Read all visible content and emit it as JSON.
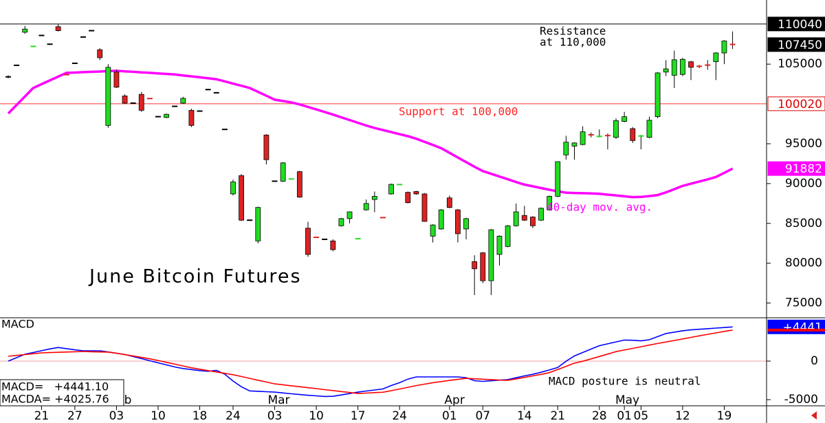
{
  "chart_data": [
    {
      "type": "candlestick",
      "title": "June Bitcoin Futures",
      "categories": [
        null,
        null,
        null,
        null,
        "21",
        null,
        null,
        null,
        "27",
        null,
        null,
        null,
        null,
        "03",
        null,
        null,
        null,
        null,
        "10",
        null,
        null,
        null,
        null,
        "18",
        null,
        null,
        null,
        "24",
        null,
        null,
        null,
        null,
        "03",
        null,
        null,
        null,
        null,
        "10",
        null,
        null,
        null,
        null,
        "17",
        null,
        null,
        null,
        null,
        "24",
        null,
        null,
        null,
        null,
        null,
        "01",
        null,
        null,
        null,
        "07",
        null,
        null,
        null,
        null,
        "14",
        null,
        null,
        null,
        "21",
        null,
        null,
        null,
        null,
        "28",
        null,
        null,
        "01",
        null,
        "05",
        null,
        null,
        null,
        null,
        "12",
        null,
        null,
        null,
        null,
        "19",
        null
      ],
      "months": [
        null,
        null,
        null,
        null,
        null,
        null,
        null,
        null,
        null,
        null,
        null,
        null,
        null,
        "b",
        null,
        null,
        null,
        null,
        null,
        null,
        null,
        null,
        null,
        null,
        null,
        null,
        null,
        null,
        null,
        null,
        null,
        null,
        "Mar",
        null,
        null,
        null,
        null,
        null,
        null,
        null,
        null,
        null,
        null,
        null,
        null,
        null,
        null,
        null,
        null,
        null,
        null,
        null,
        null,
        "Apr",
        null,
        null,
        null,
        null,
        null,
        null,
        null,
        null,
        null,
        null,
        null,
        null,
        null,
        null,
        null,
        null,
        null,
        null,
        null,
        null,
        "May",
        null,
        null,
        null,
        null,
        null,
        null,
        null,
        null,
        null,
        null,
        null,
        null,
        null
      ],
      "open": [
        103400,
        104850,
        109000,
        107200,
        108600,
        107500,
        109700,
        103700,
        105100,
        108400,
        109200,
        106800,
        97300,
        104000,
        101000,
        100100,
        101200,
        100700,
        98400,
        98300,
        99700,
        100100,
        99200,
        99100,
        101800,
        101400,
        96800,
        88700,
        91000,
        85400,
        82800,
        96100,
        90300,
        90300,
        90550,
        91500,
        84400,
        83300,
        83000,
        82800,
        84700,
        85600,
        83050,
        86700,
        88000,
        85750,
        88700,
        89850,
        88900,
        89000,
        88700,
        83400,
        84300,
        88200,
        86700,
        84300,
        80200,
        81300,
        77800,
        81100,
        82100,
        84700,
        86000,
        85800,
        85400,
        86700,
        88400,
        93600,
        94700,
        94900,
        96150,
        95900,
        96050,
        95800,
        97800,
        96900,
        95950,
        95800,
        98400,
        104000,
        103600,
        103700,
        105300,
        104750,
        104900,
        105300,
        106400,
        107500
      ],
      "high": [
        103600,
        104850,
        109800,
        107200,
        108600,
        107500,
        110000,
        103700,
        105100,
        108400,
        109200,
        107000,
        105000,
        104300,
        101200,
        100100,
        101500,
        100700,
        98400,
        98800,
        99700,
        100900,
        99400,
        99100,
        101800,
        101400,
        96800,
        90500,
        91200,
        85400,
        87100,
        96200,
        90300,
        92700,
        90600,
        91600,
        85200,
        83300,
        83000,
        83000,
        85700,
        86500,
        83100,
        88000,
        89000,
        85750,
        90000,
        89900,
        89000,
        89100,
        88800,
        84900,
        86800,
        88500,
        86800,
        85700,
        81000,
        81400,
        84300,
        83500,
        84800,
        87500,
        87200,
        85900,
        87000,
        88500,
        92800,
        96000,
        95200,
        97200,
        96400,
        96800,
        96300,
        98200,
        99000,
        97100,
        96100,
        98400,
        104000,
        105500,
        106700,
        105800,
        105400,
        104900,
        105500,
        106500,
        108000,
        109100
      ],
      "low": [
        103200,
        104850,
        108800,
        107200,
        108600,
        107500,
        109100,
        103650,
        105100,
        108400,
        109200,
        105500,
        97000,
        102000,
        100000,
        100100,
        99000,
        100650,
        98400,
        98200,
        99700,
        100000,
        97100,
        99100,
        101800,
        101400,
        96800,
        88500,
        85300,
        85400,
        82500,
        92400,
        90300,
        90200,
        90550,
        88200,
        80800,
        83200,
        83000,
        81500,
        84600,
        85000,
        83050,
        86600,
        86400,
        85700,
        88600,
        89850,
        87500,
        88600,
        85200,
        82600,
        84200,
        86900,
        82600,
        83000,
        76000,
        77500,
        76000,
        79700,
        82000,
        84600,
        85300,
        84400,
        85300,
        86600,
        88300,
        93000,
        93000,
        94800,
        95800,
        95800,
        94300,
        95600,
        97700,
        95100,
        94300,
        95700,
        98200,
        103500,
        102000,
        103500,
        103000,
        104500,
        104300,
        103000,
        105000,
        106900
      ],
      "close": [
        103400,
        104850,
        109400,
        107250,
        108600,
        107500,
        109200,
        103650,
        105100,
        108400,
        109200,
        105800,
        104600,
        102100,
        100100,
        100100,
        99200,
        100650,
        98400,
        98700,
        99700,
        100700,
        97300,
        99100,
        101800,
        101400,
        96800,
        90200,
        85400,
        85400,
        87000,
        93000,
        90300,
        92600,
        90600,
        88300,
        81100,
        83200,
        83000,
        81700,
        85600,
        86450,
        83100,
        87500,
        88400,
        85700,
        89900,
        89900,
        87600,
        88700,
        85250,
        84800,
        86700,
        87000,
        83700,
        85600,
        79300,
        77800,
        84200,
        83400,
        84700,
        86450,
        85400,
        84700,
        86900,
        88400,
        92750,
        95200,
        95100,
        96500,
        96100,
        95950,
        96000,
        97900,
        98400,
        95400,
        96000,
        97950,
        103900,
        104400,
        105550,
        105600,
        104600,
        104700,
        104850,
        106400,
        107900,
        107450
      ],
      "up_color": "#22dd22",
      "down_color": "#dd2222",
      "ylim": [
        73150,
        113050
      ],
      "yticks": [
        75000,
        80000,
        85000,
        90000,
        95000,
        105000
      ],
      "series": [
        {
          "name": "40-day mov. avg.",
          "color": "#ff00ff",
          "values": [
            98800,
            99870,
            100930,
            102000,
            102480,
            102950,
            103430,
            103900,
            103940,
            103990,
            104030,
            104070,
            104120,
            104160,
            104090,
            104030,
            103960,
            103900,
            103830,
            103770,
            103700,
            103580,
            103460,
            103340,
            103220,
            103100,
            102830,
            102550,
            102280,
            102000,
            101510,
            101030,
            100540,
            100360,
            100190,
            99940,
            99620,
            99310,
            98990,
            98660,
            98320,
            97980,
            97630,
            97290,
            96980,
            96720,
            96460,
            96200,
            95950,
            95630,
            95240,
            94850,
            94440,
            93860,
            93270,
            92690,
            92110,
            91570,
            91230,
            90880,
            90540,
            90190,
            89870,
            89650,
            89440,
            89220,
            89020,
            88860,
            88820,
            88790,
            88760,
            88720,
            88610,
            88510,
            88400,
            88300,
            88330,
            88430,
            88560,
            88890,
            89300,
            89710,
            89980,
            90260,
            90530,
            90830,
            91350,
            91882
          ]
        }
      ],
      "resistance": 110040,
      "resistance_text": [
        "Resistance",
        "at 110,000"
      ],
      "support": 100020,
      "support_text": "Support at 100,000",
      "last_price": 107450,
      "ma_last": 91882
    },
    {
      "type": "line",
      "title": "MACD",
      "ylim": [
        -5800,
        5625
      ],
      "yticks": [
        0,
        -5000
      ],
      "series": [
        {
          "color": "#0000ff",
          "values": [
            0,
            445,
            890,
            1120,
            1350,
            1580,
            1770,
            1620,
            1470,
            1340,
            1340,
            1340,
            1190,
            1030,
            860,
            590,
            320,
            50,
            -220,
            -490,
            -760,
            -960,
            -1100,
            -1230,
            -1320,
            -1200,
            -1690,
            -2590,
            -3330,
            -3860,
            -3920,
            -3970,
            -4020,
            -4130,
            -4240,
            -4340,
            -4430,
            -4510,
            -4590,
            -4570,
            -4390,
            -4210,
            -4020,
            -3880,
            -3750,
            -3610,
            -3170,
            -2800,
            -2340,
            -2050,
            -2050,
            -2050,
            -2050,
            -2050,
            -2050,
            -2150,
            -2540,
            -2630,
            -2550,
            -2470,
            -2400,
            -2160,
            -1920,
            -1710,
            -1440,
            -1150,
            -830,
            -20,
            670,
            1120,
            1560,
            2000,
            2240,
            2490,
            2730,
            2710,
            2630,
            2780,
            3180,
            3580,
            3760,
            3940,
            4050,
            4130,
            4210,
            4290,
            4360,
            4441.1
          ]
        },
        {
          "color": "#ff0000",
          "values": [
            625,
            740,
            850,
            960,
            1070,
            1110,
            1140,
            1180,
            1220,
            1250,
            1220,
            1190,
            1170,
            1020,
            840,
            660,
            480,
            300,
            80,
            -160,
            -390,
            -630,
            -860,
            -1050,
            -1230,
            -1410,
            -1590,
            -1770,
            -2000,
            -2240,
            -2480,
            -2710,
            -2950,
            -3070,
            -3200,
            -3320,
            -3450,
            -3570,
            -3700,
            -3820,
            -3950,
            -4070,
            -4200,
            -4150,
            -4090,
            -4040,
            -3840,
            -3620,
            -3400,
            -3180,
            -2990,
            -2800,
            -2660,
            -2510,
            -2370,
            -2240,
            -2290,
            -2350,
            -2400,
            -2460,
            -2490,
            -2310,
            -2110,
            -1920,
            -1720,
            -1500,
            -1090,
            -680,
            -270,
            -20,
            290,
            600,
            910,
            1230,
            1440,
            1650,
            1870,
            2080,
            2290,
            2480,
            2680,
            2880,
            3080,
            3280,
            3470,
            3660,
            3860,
            4025.76
          ]
        }
      ],
      "readout": [
        "MACD=   +4441.10",
        "MACDA= +4025.76"
      ],
      "annotation": "MACD posture is neutral",
      "last_label": {
        "value": 4441.1,
        "label": "+4441"
      }
    }
  ]
}
